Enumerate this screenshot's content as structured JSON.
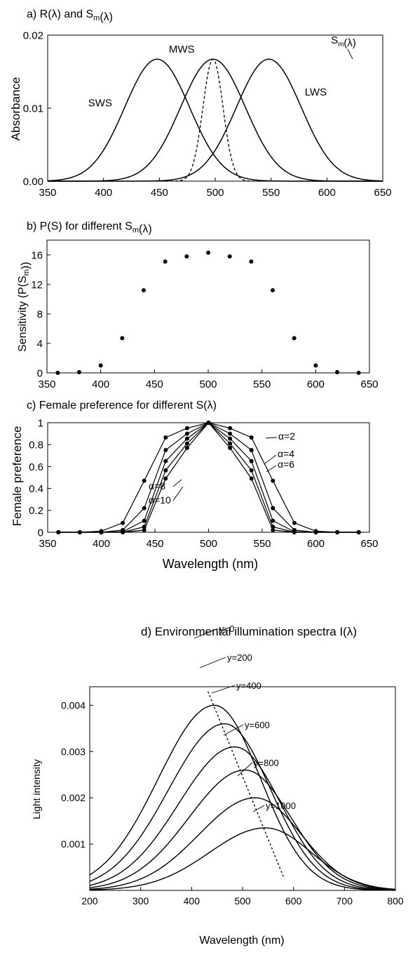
{
  "chart_data": [
    {
      "panel": "a",
      "type": "line",
      "title_parts": {
        "prefix": "a) R(",
        "lambda": "λ",
        "mid": ") and S",
        "sub": "m",
        "open": "(",
        "close": ")"
      },
      "ylabel": "Absorbance",
      "xlabel": "",
      "xlim": [
        350,
        650
      ],
      "ylim": [
        0,
        0.02
      ],
      "xticks": [
        350,
        400,
        450,
        500,
        550,
        600,
        650
      ],
      "yticks": [
        0,
        0.01,
        0.02
      ],
      "ytick_labels": [
        "0.00",
        "0.01",
        "0.02"
      ],
      "grid": false,
      "series": [
        {
          "name": "SWS",
          "shape": "gaussian",
          "peak_x": 448,
          "peak_y": 0.0167,
          "width": 29,
          "style": "solid"
        },
        {
          "name": "MWS",
          "shape": "gaussian",
          "peak_x": 498,
          "peak_y": 0.0167,
          "width": 29,
          "style": "solid"
        },
        {
          "name": "LWS",
          "shape": "gaussian",
          "peak_x": 548,
          "peak_y": 0.0167,
          "width": 29,
          "style": "solid"
        },
        {
          "name": "Sm(λ)",
          "shape": "gaussian",
          "peak_x": 498,
          "peak_y": 0.0167,
          "width": 9,
          "style": "dashed"
        }
      ],
      "annotations": [
        {
          "text": "SWS",
          "x": 397,
          "y": 0.0107
        },
        {
          "text": "MWS",
          "x": 470,
          "y": 0.0181
        },
        {
          "text": "LWS",
          "x": 590,
          "y": 0.0122
        }
      ],
      "sm_label": {
        "base": "S",
        "sub": "m",
        "open": "(",
        "lambda": "λ",
        "close": ")"
      }
    },
    {
      "panel": "b",
      "type": "scatter",
      "title_parts": {
        "prefix": "b) P(S) for different S",
        "sub": "m",
        "open": "(",
        "lambda": "λ",
        "close": ")"
      },
      "ylabel_parts": {
        "base": "Sensitivity (P(S",
        "sub": "m",
        "close": "))"
      },
      "xlabel": "",
      "xlim": [
        350,
        650
      ],
      "ylim": [
        0,
        18
      ],
      "xticks": [
        350,
        400,
        450,
        500,
        550,
        600,
        650
      ],
      "yticks": [
        0,
        4,
        8,
        12,
        16
      ],
      "grid": false,
      "x": [
        360,
        380,
        400,
        420,
        440,
        460,
        480,
        500,
        520,
        540,
        560,
        580,
        600,
        620,
        640
      ],
      "values": [
        0,
        0.1,
        1.0,
        4.7,
        11.2,
        15.1,
        15.8,
        16.3,
        15.8,
        15.1,
        11.2,
        4.7,
        1.0,
        0.1,
        0
      ]
    },
    {
      "panel": "c",
      "type": "line",
      "title_parts": {
        "prefix": "c) Female preference for different S(",
        "lambda": "λ",
        "close": ")"
      },
      "ylabel": "Female preference",
      "xlabel": "Wavelength (nm)",
      "xlim": [
        350,
        650
      ],
      "ylim": [
        0,
        1
      ],
      "xticks": [
        350,
        400,
        450,
        500,
        550,
        600,
        650
      ],
      "yticks": [
        0,
        0.2,
        0.4,
        0.6,
        0.8,
        1
      ],
      "grid": false,
      "x": [
        360,
        380,
        400,
        420,
        440,
        460,
        480,
        500,
        520,
        540,
        560,
        580,
        600,
        620,
        640
      ],
      "series": [
        {
          "name": "α=2",
          "values": [
            0,
            0,
            0.01,
            0.085,
            0.47,
            0.865,
            0.95,
            1.0,
            0.95,
            0.865,
            0.47,
            0.085,
            0.01,
            0,
            0
          ]
        },
        {
          "name": "α=4",
          "values": [
            0,
            0,
            0,
            0.02,
            0.22,
            0.75,
            0.9,
            1.0,
            0.9,
            0.75,
            0.22,
            0.02,
            0,
            0,
            0
          ]
        },
        {
          "name": "α=6",
          "values": [
            0,
            0,
            0,
            0.005,
            0.105,
            0.65,
            0.855,
            1.0,
            0.855,
            0.65,
            0.105,
            0.005,
            0,
            0,
            0
          ]
        },
        {
          "name": "α=8",
          "values": [
            0,
            0,
            0,
            0,
            0.05,
            0.565,
            0.81,
            1.0,
            0.81,
            0.565,
            0.05,
            0,
            0,
            0,
            0
          ]
        },
        {
          "name": "α=10",
          "values": [
            0,
            0,
            0,
            0,
            0.02,
            0.49,
            0.77,
            1.0,
            0.77,
            0.49,
            0.02,
            0,
            0,
            0,
            0
          ]
        }
      ]
    },
    {
      "panel": "d",
      "type": "line",
      "title_parts": {
        "prefix": "d) Environmental illumination spectra I(",
        "lambda": "λ",
        "close": ")"
      },
      "ylabel": "Light intensity",
      "xlabel": "Wavelength (nm)",
      "xlim": [
        200,
        800
      ],
      "ylim": [
        0,
        0.0044
      ],
      "xticks": [
        200,
        300,
        400,
        500,
        600,
        700,
        800
      ],
      "yticks": [
        0.001,
        0.002,
        0.003,
        0.004
      ],
      "ytick_labels": [
        "0.001",
        "0.002",
        "0.003",
        "0.004"
      ],
      "grid": false,
      "series": [
        {
          "name": "y=0",
          "peak_x": 445,
          "peak_y": 0.004
        },
        {
          "name": "y=200",
          "peak_x": 465,
          "peak_y": 0.0036
        },
        {
          "name": "y=400",
          "peak_x": 485,
          "peak_y": 0.0031
        },
        {
          "name": "y=600",
          "peak_x": 505,
          "peak_y": 0.0026
        },
        {
          "name": "y=800",
          "peak_x": 525,
          "peak_y": 0.002
        },
        {
          "name": "y=1000",
          "peak_x": 545,
          "peak_y": 0.00135
        }
      ],
      "peak_trend_line": {
        "from": [
          432,
          0.0043
        ],
        "to": [
          582,
          0.00025
        ]
      }
    }
  ]
}
